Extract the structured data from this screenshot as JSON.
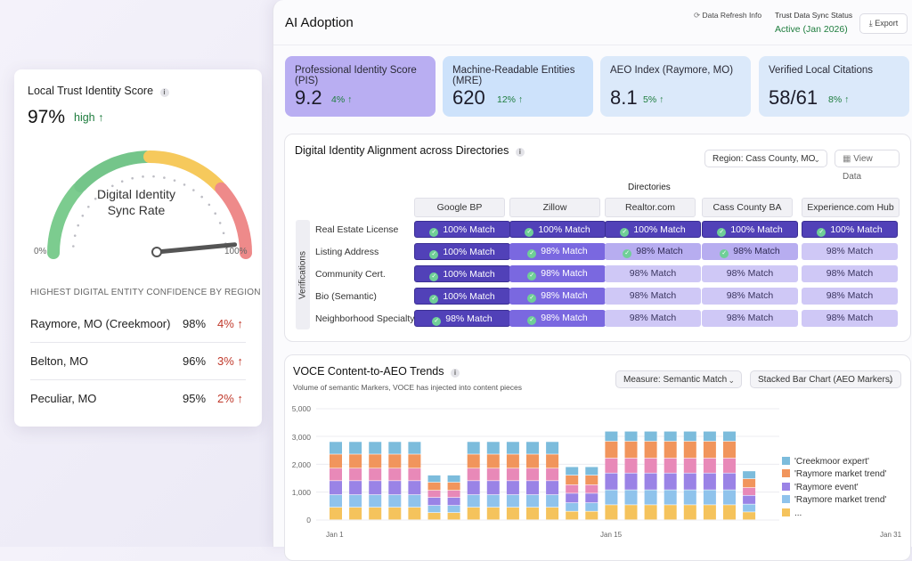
{
  "left_card": {
    "title": "Local Trust Identity Score",
    "score": "97%",
    "score_status": "high ↑",
    "gauge_label_line1": "Digital Identity",
    "gauge_label_line2": "Sync Rate",
    "gauge_min": "0%",
    "gauge_max": "100%",
    "gauge_value": 0.97,
    "regions_heading": "HIGHEST DIGITAL ENTITY CONFIDENCE BY REGION",
    "regions": [
      {
        "name": "Raymore, MO (Creekmoor)",
        "pct": "98%",
        "change": "4% ↑"
      },
      {
        "name": "Belton, MO",
        "pct": "96%",
        "change": "3% ↑"
      },
      {
        "name": "Peculiar, MO",
        "pct": "95%",
        "change": "2% ↑"
      }
    ]
  },
  "header": {
    "title": "AI Adoption",
    "refresh_label": "Data Refresh Info",
    "sync_status_label": "Trust Data Sync Status",
    "sync_status_value": "Active (Jan 2026)",
    "export_label": "Export"
  },
  "kpis": [
    {
      "label": "Professional Identity Score (PIS)",
      "value": "9.2",
      "delta": "4% ↑",
      "color": "#b9aef2"
    },
    {
      "label": "Machine-Readable Entities (MRE)",
      "value": "620",
      "delta": "12% ↑",
      "color": "#cde2fb"
    },
    {
      "label": "AEO Index (Raymore, MO)",
      "value": "8.1",
      "delta": "5% ↑",
      "color": "#dbe9fa"
    },
    {
      "label": "Verified Local Citations",
      "value": "58/61",
      "delta": "8% ↑",
      "color": "#dbe9fa"
    }
  ],
  "alignment": {
    "title": "Digital Identity Alignment across Directories",
    "region_dropdown": "Region: Cass County, MO",
    "view_data_label": "View Data",
    "directories_label": "Directories",
    "verifications_label": "Verifications",
    "columns": [
      "Google BP",
      "Zillow",
      "Realtor.com",
      "Cass County BA",
      "Experience.com Hub"
    ],
    "rows": [
      {
        "label": "Real Estate License",
        "cells": [
          {
            "text": "100% Match",
            "style": "s100",
            "check": true
          },
          {
            "text": "100% Match",
            "style": "s100",
            "check": true
          },
          {
            "text": "100% Match",
            "style": "s100",
            "check": true
          },
          {
            "text": "100% Match",
            "style": "s100",
            "check": true
          },
          {
            "text": "100% Match",
            "style": "s100",
            "check": true
          }
        ]
      },
      {
        "label": "Listing Address",
        "cells": [
          {
            "text": "100% Match",
            "style": "s100",
            "check": true
          },
          {
            "text": "98% Match",
            "style": "s98a",
            "check": true
          },
          {
            "text": "98% Match",
            "style": "s98c",
            "check": true
          },
          {
            "text": "98% Match",
            "style": "s98c",
            "check": true
          },
          {
            "text": "98% Match",
            "style": "s98b",
            "check": false
          }
        ]
      },
      {
        "label": "Community Cert.",
        "cells": [
          {
            "text": "100% Match",
            "style": "s100",
            "check": true
          },
          {
            "text": "98% Match",
            "style": "s98a",
            "check": true
          },
          {
            "text": "98% Match",
            "style": "s98b",
            "check": false
          },
          {
            "text": "98% Match",
            "style": "s98b",
            "check": false
          },
          {
            "text": "98% Match",
            "style": "s98b",
            "check": false
          }
        ]
      },
      {
        "label": "Bio (Semantic)",
        "cells": [
          {
            "text": "100% Match",
            "style": "s100",
            "check": true
          },
          {
            "text": "98% Match",
            "style": "s98a",
            "check": true
          },
          {
            "text": "98% Match",
            "style": "s98b",
            "check": false
          },
          {
            "text": "98% Match",
            "style": "s98b",
            "check": false
          },
          {
            "text": "98% Match",
            "style": "s98b",
            "check": false
          }
        ]
      },
      {
        "label": "Neighborhood Specialty",
        "cells": [
          {
            "text": "98% Match",
            "style": "s100",
            "check": true
          },
          {
            "text": "98% Match",
            "style": "s98a",
            "check": true
          },
          {
            "text": "98% Match",
            "style": "s98b",
            "check": false
          },
          {
            "text": "98% Match",
            "style": "s98b",
            "check": false
          },
          {
            "text": "98% Match",
            "style": "s98b",
            "check": false
          }
        ]
      }
    ]
  },
  "trends": {
    "title": "VOCE Content-to-AEO Trends",
    "subtitle": "Volume of semantic Markers, VOCE has injected into content pieces",
    "measure_dropdown": "Measure: Semantic Match",
    "chart_type_dropdown": "Stacked Bar Chart (AEO Markers)"
  },
  "chart_data": {
    "type": "bar",
    "stacked": true,
    "x_ticks": [
      "Jan 1",
      "Jan 15",
      "Jan 31"
    ],
    "y_ticks": [
      "0",
      "1,000",
      "2,000",
      "3,000",
      "5,000"
    ],
    "ylim": [
      0,
      5000
    ],
    "grid": true,
    "legend_position": "right",
    "colors": [
      "#f5c35c",
      "#8fc3ec",
      "#9a83e6",
      "#e889b8",
      "#f1955c",
      "#7cbcdc"
    ],
    "legend": [
      "'Creekmoor expert'",
      "'Raymore market trend'",
      "'Raymore event'",
      "'Raymore market trend'",
      "..."
    ],
    "bar_totals": [
      2800,
      2800,
      2800,
      2800,
      2800,
      1600,
      1600,
      2800,
      2800,
      2800,
      2800,
      2800,
      1900,
      1900,
      3350,
      3350,
      3350,
      3350,
      3350,
      3350,
      3350,
      1750
    ],
    "segment_fractions": [
      0.16,
      0.16,
      0.18,
      0.16,
      0.18,
      0.16
    ]
  }
}
